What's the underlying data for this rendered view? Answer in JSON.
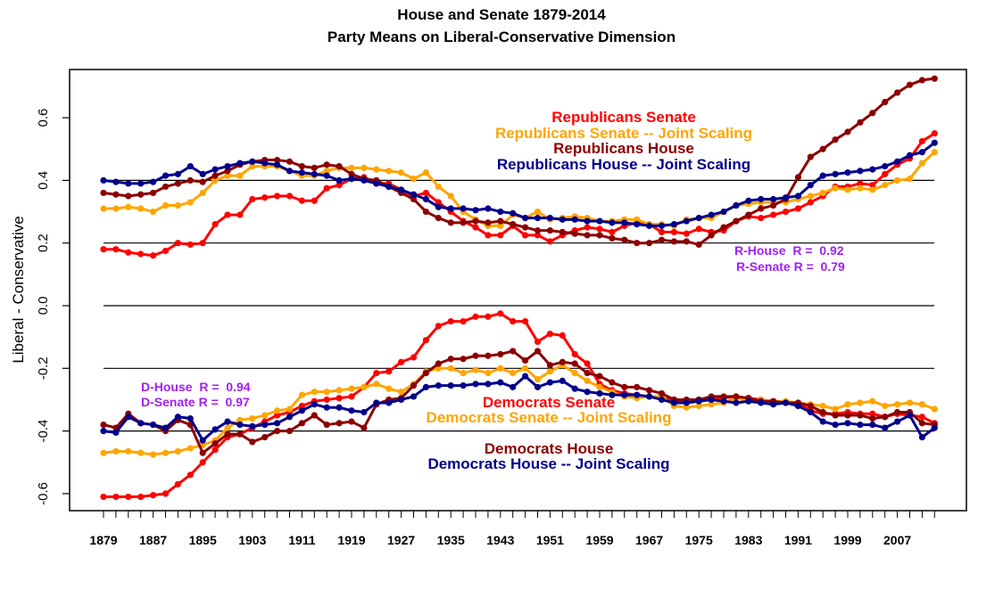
{
  "chart_data": {
    "type": "line",
    "title": "House and Senate 1879-2014",
    "subtitle": "Party Means on Liberal-Conservative Dimension",
    "xlabel": "",
    "ylabel": "Liberal - Conservative",
    "ylim": [
      -0.64,
      0.76
    ],
    "xlim": [
      1872,
      2019
    ],
    "grid": false,
    "reference_lines": [
      0.4,
      0.2,
      0.0,
      -0.2,
      -0.4
    ],
    "x_tick_labels": [
      "1879",
      "1887",
      "1895",
      "1903",
      "1911",
      "1919",
      "1927",
      "1935",
      "1943",
      "1951",
      "1959",
      "1967",
      "1975",
      "1983",
      "1991",
      "1999",
      "2007"
    ],
    "x_tick_label_years": [
      1879,
      1887,
      1895,
      1903,
      1911,
      1919,
      1927,
      1935,
      1943,
      1951,
      1959,
      1967,
      1975,
      1983,
      1991,
      1999,
      2007
    ],
    "y_tick_labels": [
      "-0.6",
      "-0.4",
      "-0.2",
      "0.0",
      "0.2",
      "0.4",
      "0.6"
    ],
    "y_tick_values": [
      -0.6,
      -0.4,
      -0.2,
      0.0,
      0.2,
      0.4,
      0.6
    ],
    "x_start": 1879,
    "x_step": 2,
    "series": [
      {
        "name": "Republicans Senate",
        "color": "#ff0000",
        "values": [
          0.18,
          0.18,
          0.17,
          0.165,
          0.16,
          0.175,
          0.2,
          0.195,
          0.2,
          0.26,
          0.29,
          0.29,
          0.34,
          0.345,
          0.35,
          0.35,
          0.335,
          0.335,
          0.375,
          0.385,
          0.405,
          0.41,
          0.39,
          0.39,
          0.37,
          0.35,
          0.36,
          0.33,
          0.3,
          0.27,
          0.25,
          0.225,
          0.225,
          0.255,
          0.225,
          0.225,
          0.205,
          0.225,
          0.24,
          0.25,
          0.245,
          0.235,
          0.255,
          0.265,
          0.26,
          0.235,
          0.235,
          0.23,
          0.245,
          0.235,
          0.24,
          0.27,
          0.285,
          0.28,
          0.29,
          0.3,
          0.31,
          0.33,
          0.35,
          0.38,
          0.38,
          0.39,
          0.385,
          0.42,
          0.45,
          0.47,
          0.525,
          0.55
        ]
      },
      {
        "name": "Republicans Senate -- Joint Scaling",
        "color": "#ffa500",
        "values": [
          0.31,
          0.31,
          0.315,
          0.31,
          0.3,
          0.32,
          0.32,
          0.33,
          0.36,
          0.4,
          0.415,
          0.415,
          0.445,
          0.445,
          0.445,
          0.43,
          0.415,
          0.415,
          0.43,
          0.44,
          0.44,
          0.44,
          0.435,
          0.43,
          0.425,
          0.405,
          0.425,
          0.38,
          0.35,
          0.3,
          0.275,
          0.255,
          0.255,
          0.29,
          0.28,
          0.3,
          0.275,
          0.28,
          0.285,
          0.28,
          0.27,
          0.27,
          0.275,
          0.275,
          0.26,
          0.26,
          0.255,
          0.275,
          0.28,
          0.28,
          0.3,
          0.32,
          0.325,
          0.33,
          0.33,
          0.33,
          0.34,
          0.35,
          0.36,
          0.375,
          0.37,
          0.375,
          0.37,
          0.385,
          0.4,
          0.405,
          0.455,
          0.49
        ]
      },
      {
        "name": "Republicans House",
        "color": "#8b0000",
        "values": [
          0.36,
          0.355,
          0.35,
          0.355,
          0.36,
          0.38,
          0.39,
          0.4,
          0.395,
          0.415,
          0.43,
          0.45,
          0.46,
          0.465,
          0.465,
          0.46,
          0.445,
          0.44,
          0.45,
          0.445,
          0.42,
          0.405,
          0.4,
          0.38,
          0.36,
          0.34,
          0.3,
          0.28,
          0.265,
          0.265,
          0.27,
          0.265,
          0.27,
          0.26,
          0.25,
          0.24,
          0.24,
          0.235,
          0.23,
          0.225,
          0.225,
          0.215,
          0.21,
          0.2,
          0.2,
          0.21,
          0.205,
          0.205,
          0.195,
          0.225,
          0.25,
          0.27,
          0.29,
          0.31,
          0.32,
          0.34,
          0.41,
          0.475,
          0.5,
          0.53,
          0.555,
          0.585,
          0.615,
          0.65,
          0.68,
          0.705,
          0.72,
          0.725
        ]
      },
      {
        "name": "Republicans House -- Joint Scaling",
        "color": "#00008b",
        "values": [
          0.4,
          0.395,
          0.39,
          0.39,
          0.395,
          0.415,
          0.42,
          0.445,
          0.42,
          0.435,
          0.445,
          0.455,
          0.46,
          0.455,
          0.45,
          0.43,
          0.425,
          0.42,
          0.415,
          0.4,
          0.405,
          0.4,
          0.39,
          0.38,
          0.37,
          0.355,
          0.34,
          0.315,
          0.31,
          0.31,
          0.305,
          0.31,
          0.3,
          0.295,
          0.28,
          0.28,
          0.28,
          0.275,
          0.275,
          0.27,
          0.27,
          0.265,
          0.265,
          0.26,
          0.255,
          0.255,
          0.26,
          0.27,
          0.28,
          0.29,
          0.3,
          0.32,
          0.335,
          0.34,
          0.34,
          0.345,
          0.35,
          0.385,
          0.415,
          0.42,
          0.425,
          0.43,
          0.435,
          0.445,
          0.46,
          0.48,
          0.49,
          0.52
        ]
      },
      {
        "name": "Democrats Senate",
        "color": "#ff0000",
        "values": [
          -0.61,
          -0.61,
          -0.61,
          -0.61,
          -0.605,
          -0.6,
          -0.57,
          -0.54,
          -0.5,
          -0.46,
          -0.42,
          -0.41,
          -0.39,
          -0.37,
          -0.35,
          -0.34,
          -0.32,
          -0.305,
          -0.3,
          -0.295,
          -0.29,
          -0.26,
          -0.215,
          -0.21,
          -0.18,
          -0.165,
          -0.11,
          -0.065,
          -0.05,
          -0.05,
          -0.035,
          -0.035,
          -0.025,
          -0.05,
          -0.05,
          -0.115,
          -0.09,
          -0.095,
          -0.155,
          -0.185,
          -0.25,
          -0.27,
          -0.28,
          -0.285,
          -0.29,
          -0.295,
          -0.3,
          -0.305,
          -0.3,
          -0.3,
          -0.295,
          -0.29,
          -0.295,
          -0.3,
          -0.305,
          -0.31,
          -0.31,
          -0.335,
          -0.345,
          -0.345,
          -0.34,
          -0.345,
          -0.345,
          -0.355,
          -0.345,
          -0.35,
          -0.355,
          -0.375
        ]
      },
      {
        "name": "Democrats Senate -- Joint Scaling",
        "color": "#ffa500",
        "values": [
          -0.47,
          -0.465,
          -0.465,
          -0.47,
          -0.475,
          -0.47,
          -0.465,
          -0.455,
          -0.445,
          -0.43,
          -0.39,
          -0.365,
          -0.36,
          -0.35,
          -0.335,
          -0.33,
          -0.285,
          -0.275,
          -0.275,
          -0.27,
          -0.265,
          -0.26,
          -0.25,
          -0.265,
          -0.275,
          -0.25,
          -0.21,
          -0.2,
          -0.2,
          -0.215,
          -0.205,
          -0.215,
          -0.2,
          -0.215,
          -0.2,
          -0.235,
          -0.21,
          -0.19,
          -0.215,
          -0.24,
          -0.26,
          -0.275,
          -0.29,
          -0.295,
          -0.29,
          -0.29,
          -0.32,
          -0.325,
          -0.32,
          -0.315,
          -0.31,
          -0.295,
          -0.305,
          -0.3,
          -0.305,
          -0.305,
          -0.31,
          -0.315,
          -0.32,
          -0.33,
          -0.315,
          -0.31,
          -0.305,
          -0.32,
          -0.315,
          -0.31,
          -0.315,
          -0.33
        ]
      },
      {
        "name": "Democrats House",
        "color": "#8b0000",
        "values": [
          -0.38,
          -0.39,
          -0.345,
          -0.375,
          -0.38,
          -0.4,
          -0.365,
          -0.38,
          -0.47,
          -0.44,
          -0.41,
          -0.41,
          -0.435,
          -0.42,
          -0.4,
          -0.4,
          -0.375,
          -0.35,
          -0.38,
          -0.375,
          -0.37,
          -0.39,
          -0.315,
          -0.3,
          -0.295,
          -0.255,
          -0.215,
          -0.185,
          -0.17,
          -0.17,
          -0.16,
          -0.16,
          -0.155,
          -0.145,
          -0.175,
          -0.145,
          -0.19,
          -0.18,
          -0.185,
          -0.215,
          -0.225,
          -0.245,
          -0.26,
          -0.26,
          -0.27,
          -0.28,
          -0.3,
          -0.3,
          -0.3,
          -0.29,
          -0.29,
          -0.29,
          -0.295,
          -0.305,
          -0.305,
          -0.31,
          -0.31,
          -0.32,
          -0.34,
          -0.35,
          -0.35,
          -0.35,
          -0.36,
          -0.355,
          -0.34,
          -0.34,
          -0.375,
          -0.38
        ]
      },
      {
        "name": "Democrats House -- Joint Scaling",
        "color": "#00008b",
        "values": [
          -0.4,
          -0.405,
          -0.355,
          -0.375,
          -0.38,
          -0.39,
          -0.355,
          -0.36,
          -0.43,
          -0.395,
          -0.37,
          -0.38,
          -0.385,
          -0.38,
          -0.375,
          -0.355,
          -0.335,
          -0.315,
          -0.325,
          -0.325,
          -0.335,
          -0.34,
          -0.31,
          -0.31,
          -0.3,
          -0.29,
          -0.26,
          -0.255,
          -0.255,
          -0.255,
          -0.25,
          -0.25,
          -0.245,
          -0.26,
          -0.225,
          -0.26,
          -0.245,
          -0.24,
          -0.265,
          -0.275,
          -0.28,
          -0.285,
          -0.285,
          -0.285,
          -0.29,
          -0.3,
          -0.31,
          -0.31,
          -0.305,
          -0.3,
          -0.305,
          -0.31,
          -0.305,
          -0.31,
          -0.315,
          -0.31,
          -0.32,
          -0.34,
          -0.37,
          -0.38,
          -0.375,
          -0.38,
          -0.38,
          -0.39,
          -0.37,
          -0.35,
          -0.42,
          -0.39
        ]
      }
    ],
    "legend_labels": {
      "top": [
        {
          "text": "Republicans Senate",
          "color": "#ff0000"
        },
        {
          "text": "Republicans Senate -- Joint Scaling",
          "color": "#ffa500"
        },
        {
          "text": "Republicans House",
          "color": "#8b0000"
        },
        {
          "text": "Republicans House -- Joint Scaling",
          "color": "#00008b"
        }
      ],
      "middle": [
        {
          "text": "Democrats Senate",
          "color": "#ff0000"
        },
        {
          "text": "Democrats Senate -- Joint Scaling",
          "color": "#ffa500"
        }
      ],
      "bottom": [
        {
          "text": "Democrats House",
          "color": "#8b0000"
        },
        {
          "text": "Democrats House -- Joint Scaling",
          "color": "#00008b"
        }
      ]
    },
    "annotations": [
      {
        "text": "R-House  R =  0.92",
        "color": "#a020f0"
      },
      {
        "text": "R-Senate R =  0.79",
        "color": "#a020f0"
      },
      {
        "text": "D-House  R =  0.94",
        "color": "#a020f0"
      },
      {
        "text": "D-Senate R =  0.97",
        "color": "#a020f0"
      }
    ]
  }
}
